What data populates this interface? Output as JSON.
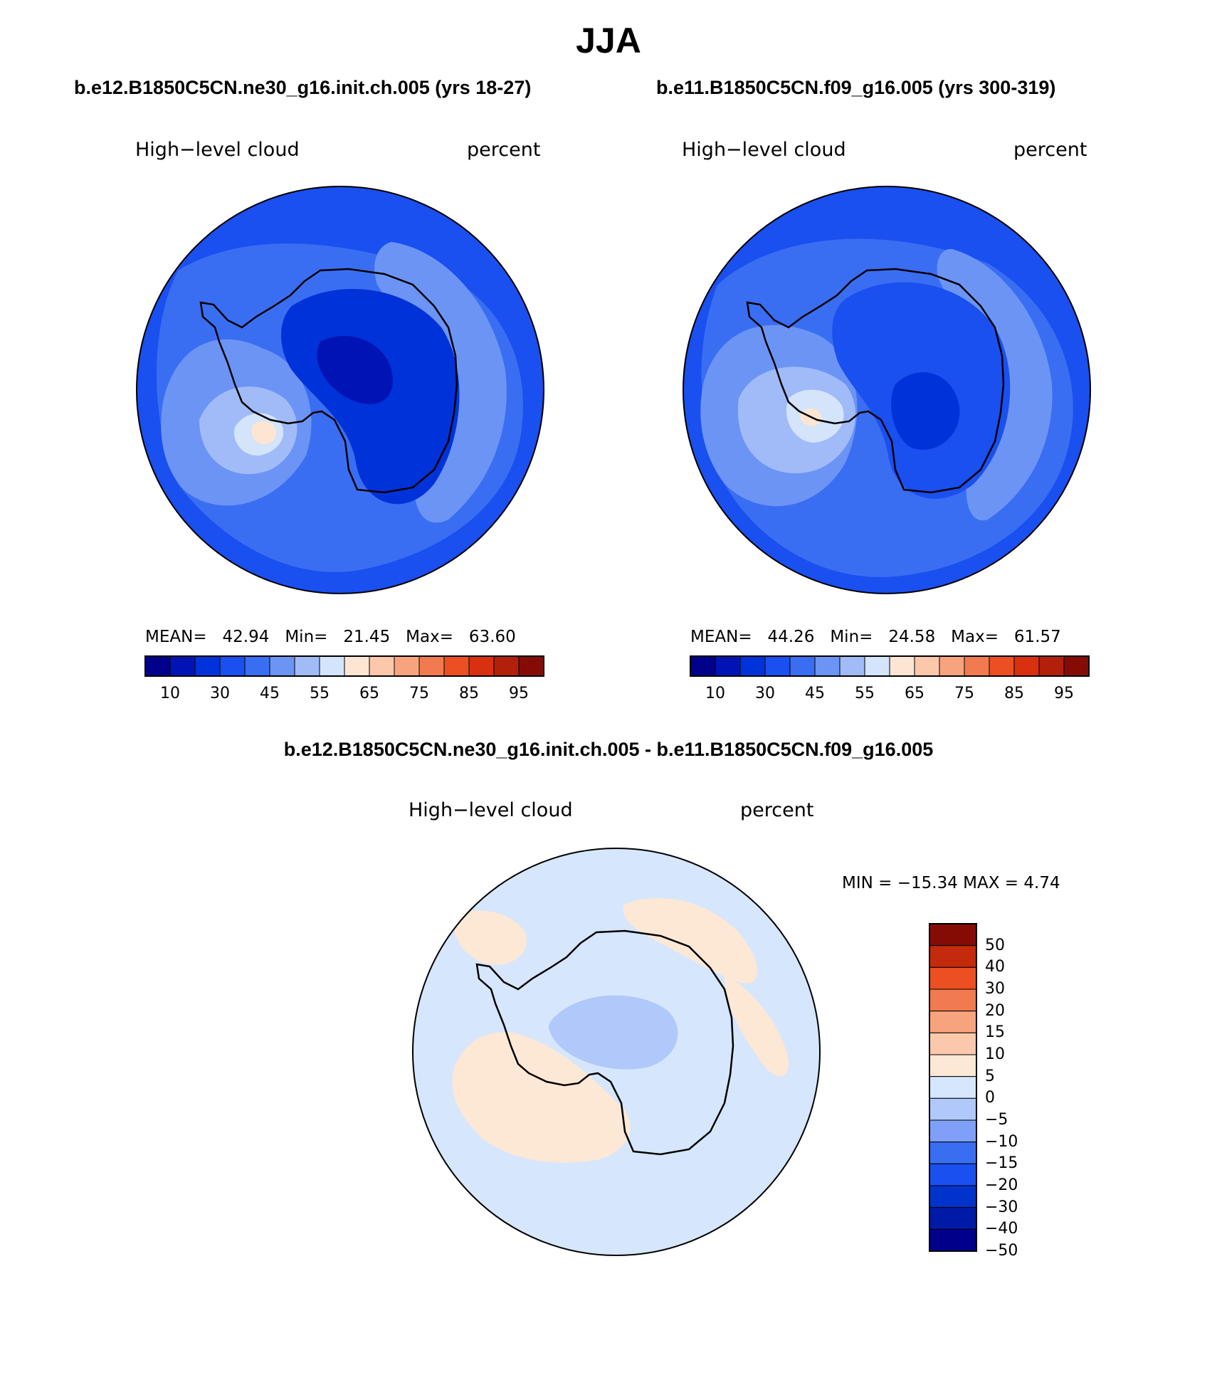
{
  "season": "JJA",
  "colors": {
    "seq_palette": [
      "#00008b",
      "#0014b5",
      "#0032d9",
      "#1a4ff0",
      "#3a6ef2",
      "#6b94f5",
      "#a0bbf7",
      "#d3e4fb",
      "#fde5d3",
      "#fbc8ab",
      "#f7a47e",
      "#f27a50",
      "#ec4f22",
      "#d93010",
      "#b2200c",
      "#850c05"
    ],
    "diff_palette": [
      "#00008b",
      "#001aa8",
      "#0033cc",
      "#1a4ff0",
      "#3a6ef2",
      "#7fa0f6",
      "#b0c8fa",
      "#d6e6fc",
      "#fde8d6",
      "#fbc8ab",
      "#f7a47e",
      "#f27a50",
      "#ec4f22",
      "#c42a0c",
      "#850c05"
    ]
  },
  "panels": [
    {
      "case_title": "b.e12.B1850C5CN.ne30_g16.init.ch.005 (yrs 18-27)",
      "variable": "High−level cloud",
      "units": "percent",
      "stats": {
        "mean_label": "MEAN=",
        "mean": "42.94",
        "min_label": "Min=",
        "min": "21.45",
        "max_label": "Max=",
        "max": "63.60"
      },
      "ticks": [
        "10",
        "30",
        "45",
        "55",
        "65",
        "75",
        "85",
        "95"
      ]
    },
    {
      "case_title": "b.e11.B1850C5CN.f09_g16.005 (yrs 300-319)",
      "variable": "High−level cloud",
      "units": "percent",
      "stats": {
        "mean_label": "MEAN=",
        "mean": "44.26",
        "min_label": "Min=",
        "min": "24.58",
        "max_label": "Max=",
        "max": "61.57"
      },
      "ticks": [
        "10",
        "30",
        "45",
        "55",
        "65",
        "75",
        "85",
        "95"
      ]
    }
  ],
  "diff": {
    "title": "b.e12.B1850C5CN.ne30_g16.init.ch.005 - b.e11.B1850C5CN.f09_g16.005",
    "variable": "High−level cloud",
    "units": "percent",
    "minmax": "MIN = −15.34 MAX =    4.74",
    "ticks": [
      "50",
      "40",
      "30",
      "20",
      "15",
      "10",
      "5",
      "0",
      "−5",
      "−10",
      "−15",
      "−20",
      "−30",
      "−40",
      "−50"
    ]
  },
  "chart_data": [
    {
      "type": "heatmap",
      "projection": "south polar stereographic",
      "title": "b.e12.B1850C5CN.ne30_g16.init.ch.005 (yrs 18-27)",
      "field": "High-level cloud",
      "units": "percent",
      "mean": 42.94,
      "min": 21.45,
      "max": 63.6,
      "colorbar_levels": [
        10,
        30,
        45,
        55,
        65,
        75,
        85,
        95
      ]
    },
    {
      "type": "heatmap",
      "projection": "south polar stereographic",
      "title": "b.e11.B1850C5CN.f09_g16.005 (yrs 300-319)",
      "field": "High-level cloud",
      "units": "percent",
      "mean": 44.26,
      "min": 24.58,
      "max": 61.57,
      "colorbar_levels": [
        10,
        30,
        45,
        55,
        65,
        75,
        85,
        95
      ]
    },
    {
      "type": "heatmap",
      "projection": "south polar stereographic",
      "title": "b.e12.B1850C5CN.ne30_g16.init.ch.005 - b.e11.B1850C5CN.f09_g16.005",
      "field": "High-level cloud",
      "units": "percent",
      "min": -15.34,
      "max": 4.74,
      "colorbar_levels": [
        -50,
        -40,
        -30,
        -20,
        -15,
        -10,
        -5,
        0,
        5,
        10,
        15,
        20,
        30,
        40,
        50
      ]
    }
  ]
}
